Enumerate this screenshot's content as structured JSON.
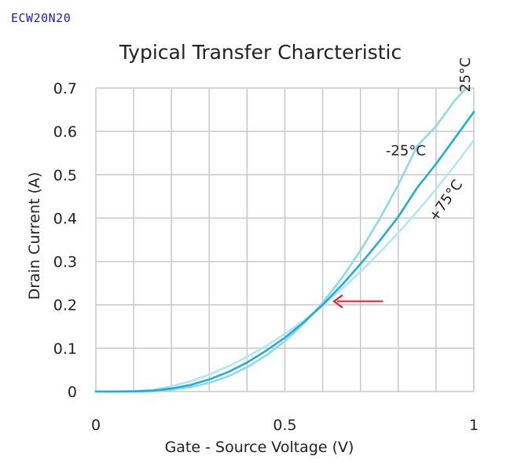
{
  "part_number": "ECW20N20",
  "chart_data": {
    "type": "line",
    "title": "Typical Transfer Charcteristic",
    "xlabel": "Gate - Source Voltage (V)",
    "ylabel": "Drain Current (A)",
    "xlim": [
      0,
      1
    ],
    "ylim": [
      0,
      0.7
    ],
    "x_ticks": [
      0,
      0.5,
      1
    ],
    "x_tick_labels": [
      "0",
      "0.5",
      "1"
    ],
    "x_grid_step": 0.1,
    "y_ticks": [
      0,
      0.1,
      0.2,
      0.3,
      0.4,
      0.5,
      0.6,
      0.7
    ],
    "y_tick_labels": [
      "0",
      "0.1",
      "0.2",
      "0.3",
      "0.4",
      "0.5",
      "0.6",
      "0.7"
    ],
    "grid": true,
    "series": [
      {
        "name": "-25°C",
        "color": "#8fd8ee",
        "x": [
          0,
          0.05,
          0.1,
          0.15,
          0.2,
          0.25,
          0.3,
          0.35,
          0.4,
          0.45,
          0.5,
          0.55,
          0.6,
          0.65,
          0.7,
          0.75,
          0.8,
          0.85,
          0.9,
          0.95,
          0.98
        ],
        "y": [
          0,
          0,
          0.0001,
          0.001,
          0.004,
          0.01,
          0.02,
          0.035,
          0.056,
          0.083,
          0.116,
          0.157,
          0.205,
          0.261,
          0.325,
          0.397,
          0.477,
          0.566,
          0.612,
          0.672,
          0.7
        ]
      },
      {
        "name": "25°C",
        "color": "#1eaed8",
        "x": [
          0,
          0.05,
          0.1,
          0.15,
          0.2,
          0.25,
          0.3,
          0.35,
          0.4,
          0.45,
          0.5,
          0.55,
          0.6,
          0.65,
          0.7,
          0.75,
          0.8,
          0.85,
          0.9,
          0.95,
          1.0
        ],
        "y": [
          0,
          0,
          0.0003,
          0.002,
          0.007,
          0.015,
          0.028,
          0.045,
          0.067,
          0.094,
          0.124,
          0.16,
          0.2,
          0.245,
          0.294,
          0.347,
          0.403,
          0.47,
          0.525,
          0.585,
          0.645
        ]
      },
      {
        "name": "+75°C",
        "color": "#b4e6f3",
        "x": [
          0,
          0.05,
          0.1,
          0.15,
          0.2,
          0.25,
          0.3,
          0.35,
          0.4,
          0.45,
          0.5,
          0.55,
          0.6,
          0.65,
          0.7,
          0.75,
          0.8,
          0.85,
          0.9,
          0.95,
          1.0
        ],
        "y": [
          0,
          0,
          0.001,
          0.004,
          0.012,
          0.024,
          0.039,
          0.058,
          0.08,
          0.105,
          0.133,
          0.164,
          0.198,
          0.236,
          0.276,
          0.32,
          0.366,
          0.415,
          0.467,
          0.522,
          0.58
        ]
      }
    ],
    "curve_labels": [
      {
        "text": "25°C",
        "series": "25°C",
        "x": 0.99,
        "y": 0.69,
        "rotate": -90
      },
      {
        "text": "-25°C",
        "series": "-25°C",
        "x": 0.82,
        "y": 0.545,
        "rotate": 0
      },
      {
        "text": "+75°C",
        "series": "+75°C",
        "x": 0.9,
        "y": 0.39,
        "rotate": -55
      }
    ],
    "annotation": {
      "type": "arrow",
      "color": "#e0282e",
      "from": [
        0.76,
        0.208
      ],
      "to": [
        0.63,
        0.208
      ]
    }
  }
}
